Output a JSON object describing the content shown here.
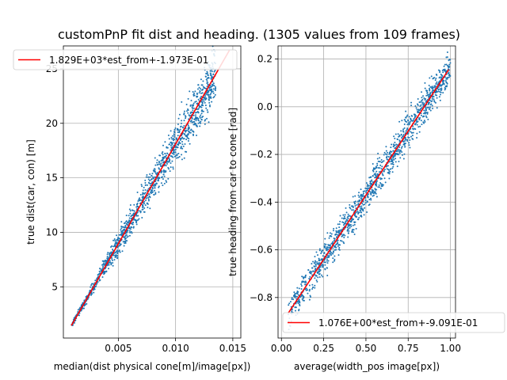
{
  "figure": {
    "title": "customPnP fit dist and heading.  (1305 values from 109 frames)"
  },
  "chart_data": [
    {
      "type": "scatter",
      "xlabel": "median(dist physical cone[m]/image[px])",
      "ylabel": "true dist(car, con) [m]",
      "xlim": [
        0.0002,
        0.0157
      ],
      "ylim": [
        0.3,
        27.1
      ],
      "xticks": [
        0.005,
        0.01,
        0.015
      ],
      "xtick_labels": [
        "0.005",
        "0.010",
        "0.015"
      ],
      "yticks": [
        5,
        10,
        15,
        20,
        25
      ],
      "ytick_labels": [
        "5",
        "10",
        "15",
        "20",
        "25"
      ],
      "grid": true,
      "legend_position": "top-left",
      "series": [
        {
          "name": "",
          "kind": "points",
          "color": "#1f77b4",
          "x_range": [
            0.0009,
            0.0135
          ],
          "slope": 1829,
          "intercept": -0.1973,
          "spread": 0.055,
          "count": 1305
        },
        {
          "name": "1.829E+03*est_from+-1.973E-01",
          "kind": "line",
          "color": "#ff0000",
          "x": [
            0.0009,
            0.0147
          ],
          "y": [
            1.449,
            26.69
          ]
        }
      ]
    },
    {
      "type": "scatter",
      "xlabel": "average(width_pos image[px])",
      "ylabel": "true heading from car to cone [rad]",
      "xlim": [
        -0.02,
        1.03
      ],
      "ylim": [
        -0.97,
        0.255
      ],
      "xticks": [
        0.0,
        0.25,
        0.5,
        0.75,
        1.0
      ],
      "xtick_labels": [
        "0.00",
        "0.25",
        "0.50",
        "0.75",
        "1.00"
      ],
      "yticks": [
        -0.8,
        -0.6,
        -0.4,
        -0.2,
        0.0,
        0.2
      ],
      "ytick_labels": [
        "−0.8",
        "−0.6",
        "−0.4",
        "−0.2",
        "0.0",
        "0.2"
      ],
      "grid": true,
      "legend_position": "bottom-right",
      "series": [
        {
          "name": "",
          "kind": "points",
          "color": "#1f77b4",
          "x_range": [
            0.04,
            1.0
          ],
          "slope": 1.076,
          "intercept": -0.9091,
          "spread": 0.035,
          "count": 1305
        },
        {
          "name": "1.076E+00*est_from+-9.091E-01",
          "kind": "line",
          "color": "#ff0000",
          "x": [
            0.04,
            0.99
          ],
          "y": [
            -0.866,
            0.156
          ]
        }
      ]
    }
  ]
}
